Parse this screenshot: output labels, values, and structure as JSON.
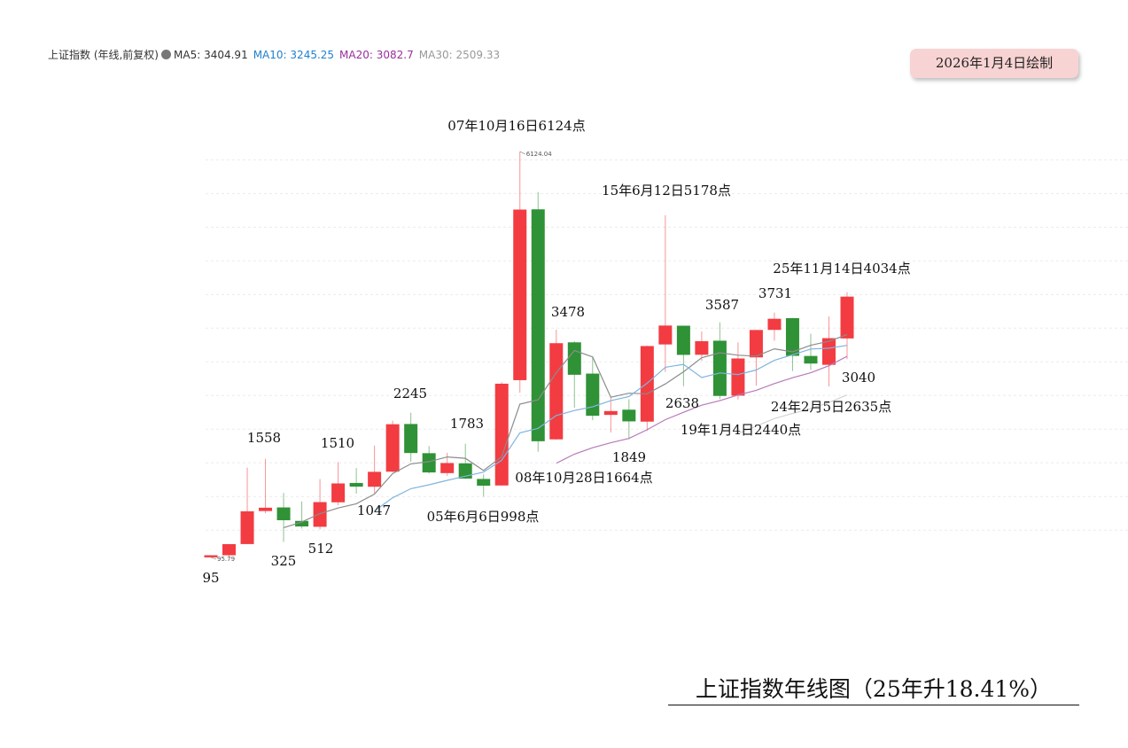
{
  "chart_data": {
    "type": "candlestick",
    "header": "上证指数 (年线,前复权)",
    "stamp": "2026年1月4日绘制",
    "title": "上证指数年线图（25年升18.41%）",
    "categories": [
      null,
      null,
      null,
      null,
      null,
      null,
      null,
      null,
      null,
      null,
      null,
      null,
      null,
      null,
      null,
      null,
      null,
      null,
      null,
      null,
      null,
      null,
      null,
      null,
      null,
      null,
      null,
      null,
      null,
      null,
      null,
      null,
      null,
      null,
      null,
      null
    ],
    "open": [
      96.05,
      127.61,
      293.75,
      784.13,
      837.7,
      637.72,
      550.26,
      914.06,
      1200.95,
      1144.89,
      1368.69,
      2077.07,
      1643.48,
      1347.43,
      1492.72,
      1260.78,
      1163.88,
      2728.19,
      5265.0,
      1849.02,
      3289.75,
      2825.33,
      2212.0,
      2289.51,
      2112.13,
      3258.63,
      3536.59,
      3105.31,
      3314.03,
      2497.88,
      3066.34,
      3474.68,
      3649.15,
      3087.51,
      2955.98,
      3347.94
    ],
    "high": [
      127.61,
      292.75,
      1429.01,
      1558.95,
      1052.94,
      926.41,
      1258.69,
      1510.18,
      1422.98,
      1756.18,
      2125.72,
      2245.44,
      1748.89,
      1649.6,
      1783.01,
      1328.53,
      2698.9,
      6124.04,
      5522.78,
      3478.01,
      3306.75,
      3067.46,
      2478.38,
      2444.8,
      3239.36,
      5178.19,
      3538.69,
      3450.49,
      3587.03,
      3288.45,
      3474.92,
      3731.69,
      3651.89,
      3418.95,
      3674.4,
      4034.08
    ],
    "low": [
      95.79,
      104.96,
      292.76,
      750.46,
      325.89,
      524.43,
      512.83,
      870.18,
      1043.02,
      1047.83,
      1361.21,
      1514.86,
      1339.2,
      1307.4,
      1259.43,
      998.23,
      1161.91,
      2541.53,
      1664.93,
      1844.09,
      2319.74,
      2134.02,
      1949.46,
      1849.65,
      1974.38,
      2850.71,
      2638.3,
      3016.53,
      2449.2,
      2440.91,
      2646.8,
      3312.72,
      2863.65,
      2882.02,
      2635.09,
      3040.69
    ],
    "close": [
      127.61,
      292.75,
      780.39,
      833.8,
      647.87,
      555.29,
      917.01,
      1194.1,
      1146.7,
      1366.58,
      2073.48,
      1645.97,
      1357.65,
      1497.04,
      1266.5,
      1161.06,
      2675.47,
      5261.56,
      1820.81,
      3277.14,
      2808.08,
      2199.42,
      2269.13,
      2115.98,
      3234.68,
      3539.18,
      3103.64,
      3307.17,
      2493.9,
      3050.12,
      3473.07,
      3639.78,
      3089.26,
      2974.93,
      3351.76,
      3968.84
    ],
    "up_color": "#f23c42",
    "down_color": "#2f9236",
    "series": [
      {
        "name": "MA5",
        "color": "#8c8c8c",
        "label_color": "#333333",
        "values": [
          null,
          null,
          null,
          null,
          536.48,
          622.02,
          746.87,
          829.61,
          892.19,
          1035.94,
          1339.57,
          1485.37,
          1518.08,
          1588.14,
          1568.13,
          1385.64,
          1591.54,
          2372.33,
          2437.08,
          2839.21,
          3168.61,
          3073.4,
          2474.92,
          2533.95,
          2525.46,
          2671.68,
          2852.52,
          3060.13,
          3135.71,
          3098.8,
          3085.58,
          3192.81,
          3149.23,
          3245.43,
          3305.76,
          3404.91
        ]
      },
      {
        "name": "MA10",
        "color": "#7fb5de",
        "label_color": "#1f7fd0",
        "values": [
          null,
          null,
          null,
          null,
          null,
          null,
          null,
          null,
          null,
          786.21,
          980.8,
          1116.12,
          1173.85,
          1240.17,
          1302.03,
          1362.61,
          1538.46,
          1945.2,
          2012.61,
          2203.67,
          2277.13,
          2332.47,
          2423.62,
          2485.52,
          2682.33,
          2920.15,
          2962.96,
          2767.52,
          2834.83,
          2812.13,
          2878.63,
          3022.67,
          3104.68,
          3190.57,
          3202.28,
          3245.25
        ]
      },
      {
        "name": "MA20",
        "color": "#b77ab9",
        "label_color": "#9b2f9c",
        "values": [
          null,
          null,
          null,
          null,
          null,
          null,
          null,
          null,
          null,
          null,
          null,
          null,
          null,
          null,
          null,
          null,
          null,
          null,
          null,
          1494.94,
          1628.96,
          1724.3,
          1798.73,
          1862.84,
          1992.18,
          2141.38,
          2250.71,
          2356.36,
          2423.72,
          2507.9,
          2577.88,
          2677.57,
          2764.15,
          2838.04,
          2942.31,
          3082.7
        ]
      },
      {
        "name": "MA30",
        "color": "#d4d4d4",
        "label_color": "#999999",
        "values": [
          null,
          null,
          null,
          null,
          null,
          null,
          null,
          null,
          null,
          null,
          null,
          null,
          null,
          null,
          null,
          null,
          null,
          null,
          null,
          null,
          null,
          null,
          null,
          null,
          null,
          null,
          null,
          null,
          null,
          1934.0,
          2045.52,
          2157.09,
          2234.05,
          2305.42,
          2395.55,
          2509.33
        ]
      }
    ],
    "annotations": [
      "07年10月16日6124点",
      "15年6月12日5178点",
      "25年11月14日4034点",
      "3731",
      "3587",
      "3478",
      "2245",
      "1783",
      "1558",
      "1510",
      "2638",
      "24年2月5日2635点",
      "3040",
      "19年1月4日2440点",
      "1849",
      "08年10月28日1664点",
      "1047",
      "05年6月6日998点",
      "512",
      "325",
      "95"
    ],
    "ylim": [
      0,
      6500
    ],
    "yticks": [
      500,
      1000,
      1500,
      2000,
      2500,
      3000,
      3500,
      4000,
      4500,
      5000,
      5500,
      6000
    ],
    "grid": true
  }
}
